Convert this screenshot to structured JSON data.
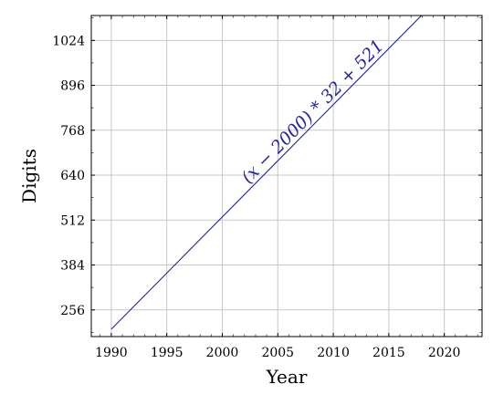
{
  "chart_data": {
    "type": "line",
    "xlabel": "Year",
    "ylabel": "Digits",
    "xlim": [
      1988.2,
      2023.4
    ],
    "ylim": [
      180,
      1095
    ],
    "xticks": [
      1990,
      1995,
      2000,
      2005,
      2010,
      2015,
      2020
    ],
    "yticks": [
      256,
      384,
      512,
      640,
      768,
      896,
      1024
    ],
    "grid": true,
    "series": [
      {
        "color": "#2323a6",
        "x": [
          1990,
          2019.12
        ],
        "y": [
          201,
          1132.8
        ]
      }
    ],
    "annotations": [
      {
        "text": "(x − 2000) * 32 + 521",
        "x": 2008.5,
        "y": 810
      }
    ]
  }
}
